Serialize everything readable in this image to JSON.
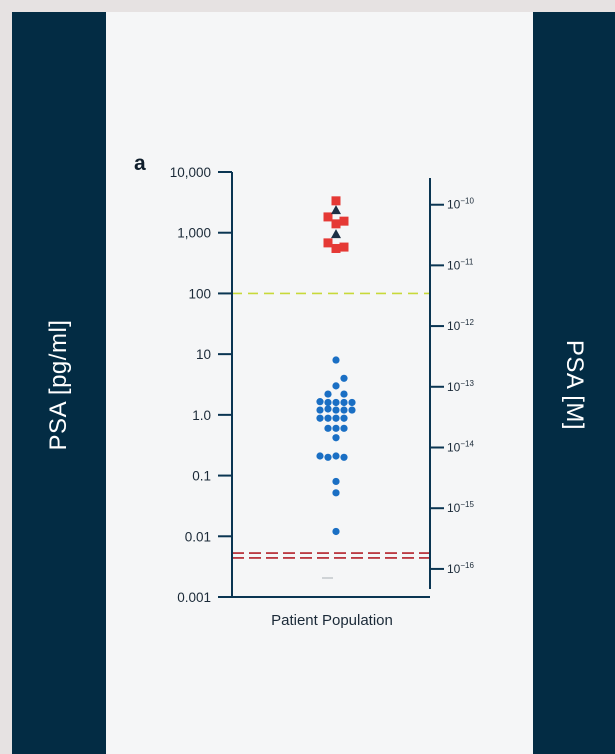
{
  "left_axis_label": "PSA [pg/ml]",
  "right_axis_label": "PSA [M]",
  "colors": {
    "dark_panel": "#032c44",
    "axis": "#0a3552",
    "red_series": "#e53935",
    "triangle_series": "#1c2f45",
    "blue_series": "#1a6fc4",
    "threshold_yellow": "#c8d93a",
    "threshold_red": "#b3202a"
  },
  "chart_data": {
    "type": "scatter",
    "panel_label": "a",
    "xlabel": "Patient Population",
    "ylabel": "PSA [pg/ml]",
    "y2label": "PSA [M]",
    "yscale": "log",
    "ylim": [
      0.001,
      10000
    ],
    "y_ticks": [
      {
        "value": 10000,
        "label": "10,000"
      },
      {
        "value": 1000,
        "label": "1,000"
      },
      {
        "value": 100,
        "label": "100"
      },
      {
        "value": 10,
        "label": "10"
      },
      {
        "value": 1,
        "label": "1.0"
      },
      {
        "value": 0.1,
        "label": "0.1"
      },
      {
        "value": 0.01,
        "label": "0.01"
      },
      {
        "value": 0.001,
        "label": "0.001"
      }
    ],
    "y2_ticks": [
      {
        "exp": 10,
        "label": "10",
        "sup": "−10"
      },
      {
        "exp": 11,
        "label": "10",
        "sup": "−11"
      },
      {
        "exp": 12,
        "label": "10",
        "sup": "−12"
      },
      {
        "exp": 13,
        "label": "10",
        "sup": "−13"
      },
      {
        "exp": 14,
        "label": "10",
        "sup": "−14"
      },
      {
        "exp": 15,
        "label": "10",
        "sup": "−15"
      },
      {
        "exp": 16,
        "label": "10",
        "sup": "−16"
      }
    ],
    "y2_tick_left_values": [
      2890,
      290,
      29,
      2.9,
      0.29,
      0.029,
      0.0029
    ],
    "thresholds": [
      {
        "value": 100,
        "color": "#c8d93a",
        "style": "dashed"
      },
      {
        "value": 0.0053,
        "color": "#b3202a",
        "style": "dashed"
      },
      {
        "value": 0.0044,
        "color": "#b3202a",
        "style": "dashed"
      }
    ],
    "series": [
      {
        "marker": "square",
        "color": "#e53935",
        "points": [
          {
            "offset": 0,
            "value": 3350
          },
          {
            "offset": -1,
            "value": 1820
          },
          {
            "offset": 1,
            "value": 1550
          },
          {
            "offset": 0,
            "value": 1400
          },
          {
            "offset": -1,
            "value": 680
          },
          {
            "offset": 1,
            "value": 580
          },
          {
            "offset": 0,
            "value": 550
          }
        ]
      },
      {
        "marker": "triangle",
        "color": "#1c2f45",
        "points": [
          {
            "offset": 0,
            "value": 2350
          },
          {
            "offset": 0,
            "value": 950
          }
        ]
      },
      {
        "marker": "circle",
        "color": "#1a6fc4",
        "points": [
          {
            "offset": 0,
            "value": 8.0
          },
          {
            "offset": 1,
            "value": 4.0
          },
          {
            "offset": 0,
            "value": 3.0
          },
          {
            "offset": -1,
            "value": 2.2
          },
          {
            "offset": 1,
            "value": 2.2
          },
          {
            "offset": -2,
            "value": 1.65
          },
          {
            "offset": -1,
            "value": 1.6
          },
          {
            "offset": 0,
            "value": 1.6
          },
          {
            "offset": 1,
            "value": 1.6
          },
          {
            "offset": 2,
            "value": 1.6
          },
          {
            "offset": -2,
            "value": 1.2
          },
          {
            "offset": -1,
            "value": 1.25
          },
          {
            "offset": 0,
            "value": 1.2
          },
          {
            "offset": 1,
            "value": 1.2
          },
          {
            "offset": 2,
            "value": 1.2
          },
          {
            "offset": -2,
            "value": 0.88
          },
          {
            "offset": -1,
            "value": 0.88
          },
          {
            "offset": 0,
            "value": 0.88
          },
          {
            "offset": 1,
            "value": 0.88
          },
          {
            "offset": 0,
            "value": 0.42
          },
          {
            "offset": -1,
            "value": 0.6
          },
          {
            "offset": 1,
            "value": 0.6
          },
          {
            "offset": 0,
            "value": 0.6
          },
          {
            "offset": -2,
            "value": 0.21
          },
          {
            "offset": -1,
            "value": 0.2
          },
          {
            "offset": 0,
            "value": 0.21
          },
          {
            "offset": 1,
            "value": 0.2
          },
          {
            "offset": 0,
            "value": 0.08
          },
          {
            "offset": 0,
            "value": 0.052
          },
          {
            "offset": 0,
            "value": 0.012
          }
        ]
      }
    ],
    "grid": false,
    "legend": "none"
  }
}
